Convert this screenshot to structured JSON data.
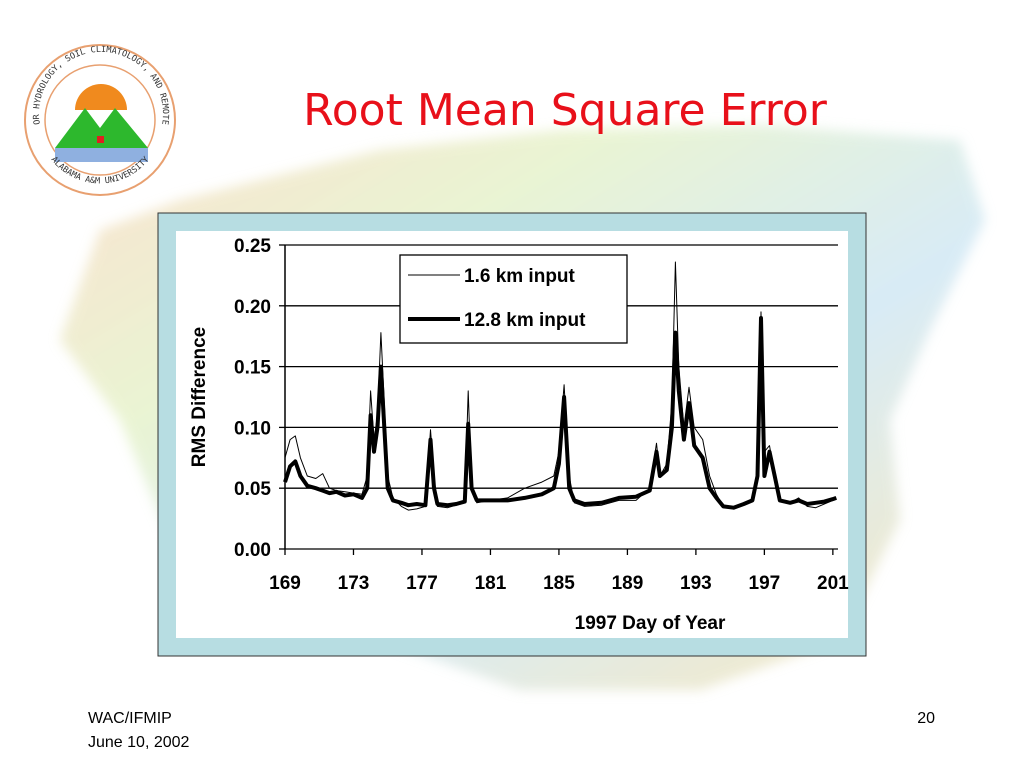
{
  "slide": {
    "title": "Root Mean Square Error",
    "footer_left": [
      "WAC/IFMIP",
      "June 10, 2002"
    ],
    "page_number": "20"
  },
  "logo": {
    "text_top": "CENTER FOR HYDROLOGY, SOIL CLIMATOLOGY, AND REMOTE SENSING",
    "text_bottom": "ALABAMA A&M UNIVERSITY"
  },
  "chart_data": {
    "type": "line",
    "x_label": "1997 Day of Year",
    "y_label": "RMS Difference",
    "x": [
      169.0,
      169.3,
      169.6,
      169.9,
      170.3,
      170.8,
      171.2,
      171.6,
      172.0,
      172.5,
      173.0,
      173.5,
      173.8,
      174.0,
      174.2,
      174.4,
      174.6,
      174.8,
      175.0,
      175.3,
      175.8,
      176.2,
      176.7,
      177.2,
      177.5,
      177.7,
      177.9,
      178.5,
      179.0,
      179.5,
      179.7,
      179.9,
      180.2,
      181.0,
      182.0,
      183.0,
      184.0,
      184.7,
      185.0,
      185.3,
      185.6,
      185.9,
      186.5,
      187.5,
      188.5,
      189.5,
      190.3,
      190.7,
      190.9,
      191.3,
      191.6,
      191.8,
      192.0,
      192.3,
      192.6,
      192.9,
      193.4,
      193.8,
      194.2,
      194.6,
      195.2,
      195.8,
      196.3,
      196.6,
      196.8,
      197.0,
      197.3,
      197.6,
      197.9,
      198.5,
      199.0,
      199.5,
      200.0,
      200.5,
      201.0,
      201.2
    ],
    "series": [
      {
        "name": "1.6 km input",
        "color": "#000000",
        "values": [
          0.075,
          0.09,
          0.093,
          0.075,
          0.06,
          0.058,
          0.062,
          0.05,
          0.048,
          0.047,
          0.046,
          0.045,
          0.06,
          0.13,
          0.09,
          0.11,
          0.178,
          0.12,
          0.06,
          0.042,
          0.035,
          0.032,
          0.033,
          0.035,
          0.098,
          0.06,
          0.035,
          0.034,
          0.036,
          0.038,
          0.13,
          0.05,
          0.038,
          0.04,
          0.042,
          0.05,
          0.055,
          0.06,
          0.08,
          0.135,
          0.06,
          0.038,
          0.035,
          0.036,
          0.04,
          0.04,
          0.05,
          0.087,
          0.06,
          0.07,
          0.12,
          0.236,
          0.15,
          0.1,
          0.133,
          0.1,
          0.09,
          0.06,
          0.045,
          0.035,
          0.033,
          0.038,
          0.04,
          0.06,
          0.195,
          0.08,
          0.085,
          0.06,
          0.04,
          0.038,
          0.042,
          0.035,
          0.034,
          0.037,
          0.04,
          0.042
        ]
      },
      {
        "name": "12.8 km input",
        "color": "#000000",
        "values": [
          0.055,
          0.068,
          0.072,
          0.06,
          0.052,
          0.05,
          0.048,
          0.046,
          0.047,
          0.044,
          0.045,
          0.042,
          0.05,
          0.11,
          0.08,
          0.1,
          0.15,
          0.1,
          0.05,
          0.04,
          0.038,
          0.036,
          0.037,
          0.036,
          0.09,
          0.05,
          0.037,
          0.036,
          0.037,
          0.039,
          0.103,
          0.05,
          0.04,
          0.04,
          0.04,
          0.042,
          0.045,
          0.05,
          0.07,
          0.125,
          0.05,
          0.04,
          0.037,
          0.038,
          0.042,
          0.043,
          0.048,
          0.08,
          0.06,
          0.065,
          0.1,
          0.178,
          0.13,
          0.09,
          0.12,
          0.085,
          0.075,
          0.05,
          0.042,
          0.035,
          0.034,
          0.037,
          0.04,
          0.06,
          0.19,
          0.06,
          0.08,
          0.06,
          0.04,
          0.038,
          0.04,
          0.037,
          0.038,
          0.039,
          0.041,
          0.042
        ]
      }
    ],
    "xlim": [
      169,
      201.3
    ],
    "xticks": [
      169,
      173,
      177,
      181,
      185,
      189,
      193,
      197,
      201
    ],
    "ylim": [
      0,
      0.25
    ],
    "yticks": [
      {
        "value": 0,
        "label": "0.00"
      },
      0.05,
      {
        "value": 0.1,
        "label": "0.10"
      },
      0.15,
      {
        "value": 0.2,
        "label": "0.20"
      },
      0.25
    ],
    "grid": true,
    "legend": "upper center"
  }
}
